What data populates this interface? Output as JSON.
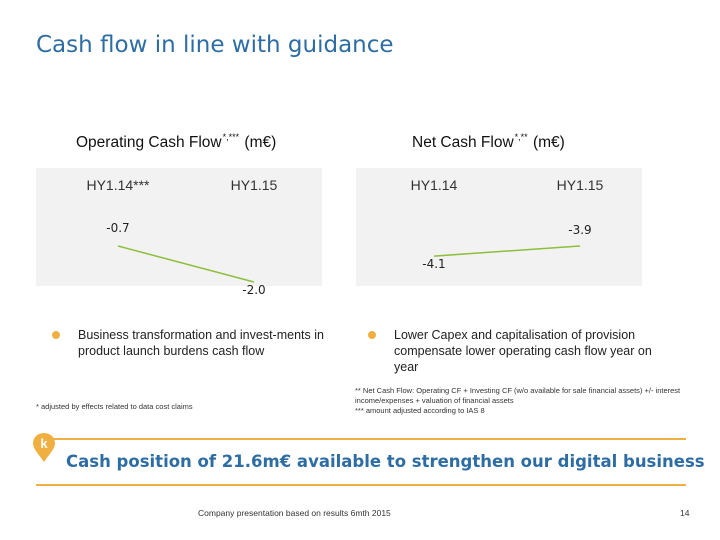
{
  "slide": {
    "title": "Cash flow in line with guidance",
    "conclusion": "Cash position of 21.6m€ available to strengthen our digital business",
    "badge_letter": "k",
    "footer": "Company presentation based on results 6mth 2015",
    "page_number": "14"
  },
  "colors": {
    "accent": "#2e6da4",
    "bar": "#f0b041",
    "line": "#8cbf3a",
    "plot_bg": "#f2f2f2",
    "text": "#222222"
  },
  "operating": {
    "title": "Operating Cash Flow",
    "title_sup": "*,***",
    "title_unit": "(m€)",
    "bullet": "Business transformation and invest-ments in product launch burdens cash flow",
    "footnote": "* adjusted by effects related to data cost claims"
  },
  "net": {
    "title": "Net Cash Flow",
    "title_sup": "*,**",
    "title_unit": "(m€)",
    "bullet": "Lower Capex and capitalisation of provision compensate lower operating cash flow year on year",
    "footnote_1": "** Net Cash Flow: Operating CF + Investing CF (w/o available for sale financial assets) +/- interest income/expenses + valuation of financial assets",
    "footnote_2": "*** amount adjusted according to IAS 8"
  },
  "chart_data": [
    {
      "type": "line",
      "title": "Operating Cash Flow*,*** (m€)",
      "categories": [
        "HY1.14***",
        "HY1.15"
      ],
      "values": [
        -0.7,
        -2.0
      ],
      "data_labels": [
        "-0.7",
        "-2.0"
      ]
    },
    {
      "type": "line",
      "title": "Net Cash Flow*,** (m€)",
      "categories": [
        "HY1.14",
        "HY1.15"
      ],
      "values": [
        -4.1,
        -3.9
      ],
      "data_labels": [
        "-4.1",
        "-3.9"
      ]
    }
  ]
}
